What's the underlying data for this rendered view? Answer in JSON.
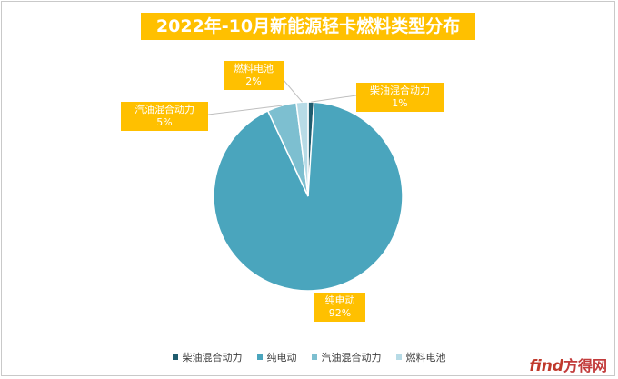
{
  "chart_data": {
    "type": "pie",
    "title": "2022年-10月新能源轻卡燃料类型分布",
    "categories": [
      "柴油混合动力",
      "纯电动",
      "汽油混合动力",
      "燃料电池"
    ],
    "values": [
      1,
      92,
      5,
      2
    ],
    "data_labels": [
      {
        "name": "柴油混合动力",
        "value": "1%"
      },
      {
        "name": "纯电动",
        "value": "92%"
      },
      {
        "name": "汽油混合动力",
        "value": "5%"
      },
      {
        "name": "燃料电池",
        "value": "2%"
      }
    ],
    "colors": [
      "#1f5c6e",
      "#4aa5bd",
      "#7dbfd0",
      "#b7dbe6"
    ],
    "legend_position": "bottom"
  },
  "watermark": {
    "brand": "find",
    "cn": "方得网"
  }
}
